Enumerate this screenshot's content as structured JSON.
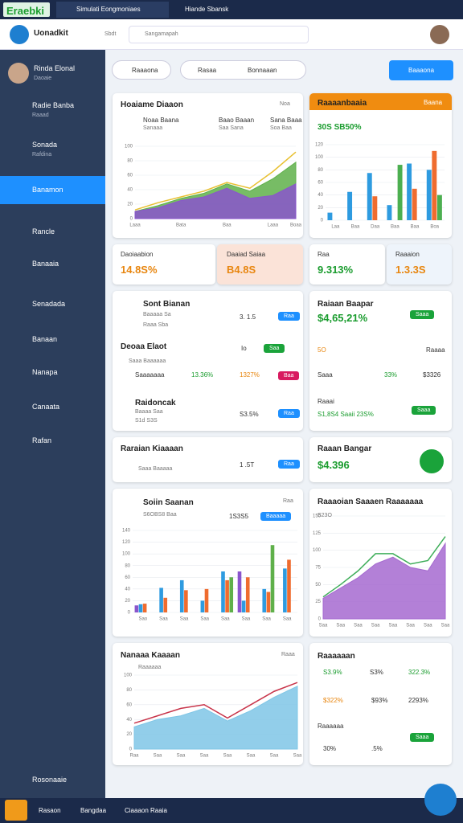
{
  "header": {
    "brand": "Eraebki",
    "tabs": [
      "Simulati Eongmoniaes",
      "Hiande Sbansk"
    ]
  },
  "topbar": {
    "logo": "Uonadkit",
    "link": "Sbdt",
    "search": "Sangamapah"
  },
  "sidebar": {
    "user": "Rinda Elonal",
    "role": "Daoaie",
    "items": [
      {
        "label": "Radie Banba",
        "sub": "Raaad"
      },
      {
        "label": "Sonada",
        "sub": "Rafdina"
      },
      {
        "label": "Banamon"
      },
      {
        "label": "Rancle"
      },
      {
        "label": "Banaaia"
      },
      {
        "label": "Senadada"
      },
      {
        "label": "Banaan"
      },
      {
        "label": "Nanapa"
      },
      {
        "label": "Canaata"
      },
      {
        "label": "Rafan"
      }
    ],
    "footer": "Rosonaaie"
  },
  "filters": [
    "Raaaona",
    "Rasaa",
    "Bonnaaan"
  ],
  "action": "Baaaona",
  "cards": {
    "a": {
      "title": "Hoaiame Diaaon",
      "tag": "Noa",
      "cols": [
        {
          "name": "Noaa Baana",
          "sub": "Sanaaa"
        },
        {
          "name": "Baao Baaan",
          "sub": "Saa Sana"
        },
        {
          "name": "Sana Baaa",
          "sub": "Soa Baa"
        }
      ]
    },
    "b": {
      "title": "Raaaanbaaia",
      "tag": "Baana",
      "value": "30S SB50%"
    },
    "metrics": [
      {
        "label": "Daoiaabion",
        "value": "14.8S%"
      },
      {
        "label": "Daaiad Saiaa",
        "value": "B4.8S"
      },
      {
        "label": "Raa",
        "value": "9.313%"
      },
      {
        "label": "Raaaion",
        "value": "1.3.3S"
      }
    ],
    "c": {
      "title": "Sont Bianan",
      "sub": "Baaaaa Sa",
      "sub2": "Raaa Sba",
      "value": "3. 1.5",
      "button": "Raa",
      "mid": {
        "title": "Deoaa Elaot",
        "sub": "Saaa Baaaaaa",
        "row": "Saaaaaaa",
        "pct": "13.36%",
        "pct2": "1327%",
        "badge": "Io",
        "button": "Saa",
        "button2": "Baa"
      },
      "low": {
        "title": "Raidoncak",
        "sub": "Baaaa Saa",
        "sub2": "S1d S3S",
        "value": "S3.5%",
        "button": "Raa"
      }
    },
    "d": {
      "title": "Raiaan Baapar",
      "value": "$4,65,21%",
      "button": "Saaa",
      "num": "5O",
      "label": "Raaaa",
      "leg": [
        "Saaa",
        "33%",
        "$3326"
      ],
      "title2": "Raaai",
      "value2": "S1,8S4 Saaii 23S%",
      "button2": "Saaa"
    },
    "e": {
      "title": "Raraian Kiaaaan",
      "sub": "Saaa Baaaaa",
      "value": "1 .5T",
      "button": "Raa"
    },
    "f": {
      "title": "Raaan Bangar",
      "value": "$4.396"
    },
    "g": {
      "title": "Soiin Saanan",
      "sub": "S6OBS8 Baa",
      "tag": "Raa",
      "value": "1S3S5",
      "button": "Baaaaa"
    },
    "h": {
      "title": "Raaaoian Saaaen Raaaaaaa",
      "sub": "S23O"
    },
    "i": {
      "title": "Nanaaa Kaaaan",
      "sub": "Raaaaaa",
      "tag": "Raaa"
    },
    "j": {
      "title": "Raaaaaan",
      "rows": [
        "S3.9%",
        "S3%",
        "322.3%",
        "$322%",
        "$93%",
        "2293%"
      ],
      "title2": "Raaaaaa",
      "low": [
        "30%",
        ".5%"
      ],
      "button": "Saaa"
    }
  },
  "bottom_bar": [
    "Rasaon",
    "Bangdaa",
    "Ciaaaon Raaia"
  ],
  "charts": [
    {
      "type": "area",
      "categories": [
        "Laaa",
        null,
        "Bata",
        null,
        "Baa",
        null,
        "Laaa",
        "Boaa"
      ],
      "ylim": [
        0,
        100
      ],
      "yticks": [
        0,
        20,
        40,
        60,
        80,
        100
      ],
      "grid": true,
      "series": [
        {
          "kind": "area",
          "color": "#5fb04a",
          "values": [
            10,
            18,
            28,
            35,
            48,
            38,
            55,
            78
          ]
        },
        {
          "kind": "area",
          "color": "#8a55cc",
          "values": [
            10,
            15,
            25,
            30,
            42,
            28,
            32,
            48
          ]
        },
        {
          "kind": "line",
          "color": "#e8c030",
          "values": [
            12,
            22,
            30,
            38,
            50,
            42,
            65,
            92
          ]
        }
      ]
    },
    {
      "type": "bar",
      "categories": [
        "Laa",
        "Baa",
        "Daa",
        "Baa",
        "Baa",
        "Boa"
      ],
      "ylim": [
        0,
        120
      ],
      "yticks": [
        0,
        20,
        40,
        60,
        80,
        100,
        120
      ],
      "grid": true,
      "series": [
        {
          "color": "#2e9be0",
          "values": [
            12,
            45,
            75,
            24,
            90,
            80
          ]
        },
        {
          "color": "#ef6c2f",
          "values": [
            null,
            null,
            38,
            null,
            50,
            110
          ]
        },
        {
          "color": "#4caf50",
          "values": [
            null,
            null,
            null,
            88,
            null,
            40
          ]
        }
      ]
    },
    {
      "type": "bar",
      "categories": [
        "Sao",
        "Saa",
        "Saa",
        "Saa",
        "Saa",
        "Saa",
        "Saa",
        "Saa"
      ],
      "ylim": [
        0,
        140
      ],
      "yticks": [
        0,
        20,
        40,
        60,
        80,
        100,
        120,
        140
      ],
      "grid": true,
      "series": [
        {
          "color": "#8a55cc",
          "values": [
            12,
            null,
            null,
            null,
            null,
            70,
            null,
            null
          ]
        },
        {
          "color": "#2e9be0",
          "values": [
            14,
            42,
            55,
            20,
            70,
            20,
            40,
            75
          ]
        },
        {
          "color": "#ef6c2f",
          "values": [
            15,
            25,
            38,
            40,
            55,
            60,
            35,
            90
          ]
        },
        {
          "color": "#5fb04a",
          "values": [
            null,
            null,
            null,
            null,
            60,
            null,
            115,
            null
          ]
        }
      ]
    },
    {
      "type": "area",
      "categories": [
        "Saa",
        "Saa",
        "Saa",
        "Saa",
        "Saa",
        "Saa",
        "Saa",
        "Saa"
      ],
      "ylim": [
        0,
        150
      ],
      "yticks": [
        0,
        25,
        50,
        75,
        100,
        125,
        150
      ],
      "grid": true,
      "series": [
        {
          "kind": "area",
          "color": "#a66ad0",
          "values": [
            30,
            45,
            60,
            80,
            90,
            75,
            70,
            110
          ]
        },
        {
          "kind": "line",
          "color": "#3fae5a",
          "values": [
            32,
            50,
            70,
            95,
            95,
            80,
            85,
            120
          ]
        }
      ]
    },
    {
      "type": "area",
      "categories": [
        "Raa",
        "Saa",
        "Saa",
        "Saa",
        "Saa",
        "Saa",
        "Saa",
        "Saa"
      ],
      "ylim": [
        0,
        100
      ],
      "yticks": [
        0,
        20,
        40,
        60,
        80,
        100
      ],
      "grid": true,
      "series": [
        {
          "kind": "area",
          "color": "#7fc6e6",
          "values": [
            30,
            40,
            45,
            55,
            38,
            52,
            70,
            85
          ]
        },
        {
          "kind": "line",
          "color": "#c8344a",
          "values": [
            35,
            45,
            55,
            60,
            42,
            60,
            78,
            90
          ]
        }
      ]
    }
  ]
}
